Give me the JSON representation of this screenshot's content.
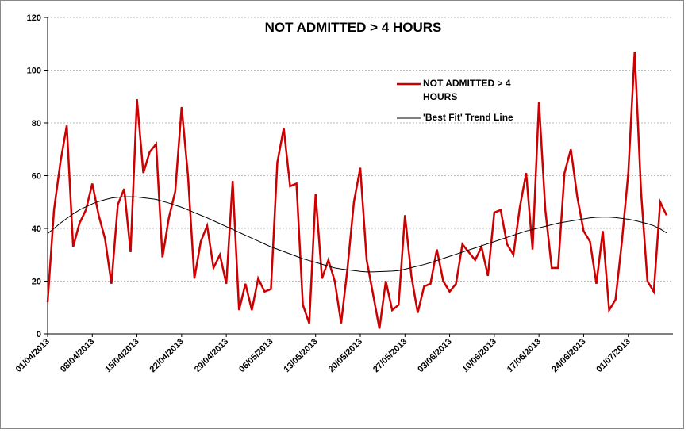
{
  "chart_data": {
    "type": "line",
    "title": "NOT ADMITTED > 4 HOURS",
    "categories": [
      "01/04/2013",
      null,
      null,
      null,
      null,
      null,
      null,
      "08/04/2013",
      null,
      null,
      null,
      null,
      null,
      null,
      "15/04/2013",
      null,
      null,
      null,
      null,
      null,
      null,
      "22/04/2013",
      null,
      null,
      null,
      null,
      null,
      null,
      "29/04/2013",
      null,
      null,
      null,
      null,
      null,
      null,
      "06/05/2013",
      null,
      null,
      null,
      null,
      null,
      null,
      "13/05/2013",
      null,
      null,
      null,
      null,
      null,
      null,
      "20/05/2013",
      null,
      null,
      null,
      null,
      null,
      null,
      "27/05/2013",
      null,
      null,
      null,
      null,
      null,
      null,
      "03/06/2013",
      null,
      null,
      null,
      null,
      null,
      null,
      "10/06/2013",
      null,
      null,
      null,
      null,
      null,
      null,
      "17/06/2013",
      null,
      null,
      null,
      null,
      null,
      null,
      "24/06/2013",
      null,
      null,
      null,
      null,
      null,
      null,
      "01/07/2013",
      null,
      null,
      null,
      null,
      null,
      null
    ],
    "series": [
      {
        "name": "NOT ADMITTED > 4 HOURS",
        "color": "#cc0000",
        "width": 2.5,
        "values": [
          12,
          47,
          65,
          79,
          33,
          42,
          47,
          57,
          45,
          36,
          19,
          49,
          55,
          31,
          89,
          61,
          69,
          72,
          29,
          44,
          54,
          86,
          60,
          21,
          35,
          41,
          25,
          30,
          19,
          58,
          9,
          19,
          9,
          21,
          16,
          17,
          65,
          78,
          56,
          57,
          11,
          4,
          53,
          21,
          28,
          20,
          4,
          25,
          50,
          63,
          28,
          15,
          2,
          20,
          9,
          11,
          45,
          22,
          8,
          18,
          19,
          32,
          20,
          16,
          19,
          34,
          31,
          28,
          33,
          22,
          46,
          47,
          34,
          30,
          48,
          61,
          32,
          88,
          47,
          25,
          25,
          61,
          70,
          52,
          39,
          35,
          19,
          39,
          9,
          13,
          35,
          61,
          107,
          54,
          20,
          16,
          50,
          45
        ]
      },
      {
        "name": "'Best Fit' Trend Line",
        "color": "#000000",
        "width": 1,
        "values": [
          38.0,
          40.0,
          42.0,
          43.8,
          45.5,
          47.0,
          48.2,
          49.3,
          50.2,
          50.9,
          51.5,
          51.8,
          52.0,
          52.0,
          51.9,
          51.6,
          51.3,
          51.0,
          50.3,
          49.6,
          48.8,
          48.0,
          47.0,
          46.0,
          45.0,
          44.0,
          42.9,
          41.8,
          40.7,
          39.6,
          38.5,
          37.4,
          36.3,
          35.2,
          34.1,
          33.0,
          32.1,
          31.2,
          30.3,
          29.4,
          28.5,
          27.8,
          27.1,
          26.4,
          25.7,
          25.0,
          24.6,
          24.3,
          24.0,
          23.7,
          23.5,
          23.5,
          23.6,
          23.7,
          23.8,
          24.0,
          24.5,
          25.1,
          25.7,
          26.3,
          27.0,
          27.8,
          28.6,
          29.4,
          30.2,
          31.0,
          31.8,
          32.6,
          33.4,
          34.2,
          35.0,
          35.8,
          36.6,
          37.4,
          38.2,
          39.0,
          39.6,
          40.2,
          40.8,
          41.4,
          42.0,
          42.4,
          42.8,
          43.2,
          43.6,
          44.0,
          44.2,
          44.3,
          44.3,
          44.1,
          43.8,
          43.5,
          43.0,
          42.4,
          41.8,
          41.0,
          39.8,
          38.3
        ]
      }
    ],
    "ylim": [
      0,
      120
    ],
    "yticks": [
      0,
      20,
      40,
      60,
      80,
      100,
      120
    ],
    "grid": true
  }
}
